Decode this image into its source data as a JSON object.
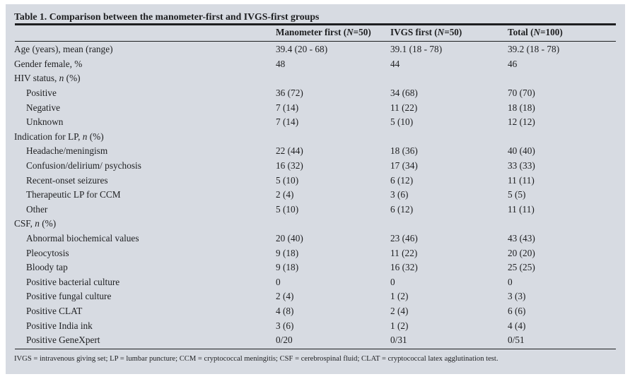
{
  "table": {
    "title": "Table 1. Comparison between the manometer-first and IVGS-first groups",
    "columns": [
      {
        "label": ""
      },
      {
        "label": "Manometer first (*N*=50)"
      },
      {
        "label": "IVGS first (*N*=50)"
      },
      {
        "label": "Total (*N*=100)"
      }
    ],
    "rows": [
      {
        "label": "Age (years), mean (range)",
        "indent": 0,
        "values": [
          "39.4 (20 - 68)",
          "39.1 (18 - 78)",
          "39.2 (18 - 78)"
        ]
      },
      {
        "label": "Gender female, %",
        "indent": 0,
        "values": [
          "48",
          "44",
          "46"
        ]
      },
      {
        "label": "HIV status, *n* (%)",
        "indent": 0,
        "values": [
          "",
          "",
          ""
        ]
      },
      {
        "label": "Positive",
        "indent": 1,
        "values": [
          "36 (72)",
          "34 (68)",
          "70 (70)"
        ]
      },
      {
        "label": "Negative",
        "indent": 1,
        "values": [
          "7 (14)",
          "11 (22)",
          "18 (18)"
        ]
      },
      {
        "label": "Unknown",
        "indent": 1,
        "values": [
          "7 (14)",
          "5 (10)",
          "12 (12)"
        ]
      },
      {
        "label": "Indication for LP, *n* (%)",
        "indent": 0,
        "values": [
          "",
          "",
          ""
        ]
      },
      {
        "label": "Headache/meningism",
        "indent": 1,
        "values": [
          "22 (44)",
          "18 (36)",
          "40 (40)"
        ]
      },
      {
        "label": "Confusion/delirium/ psychosis",
        "indent": 1,
        "values": [
          "16 (32)",
          "17 (34)",
          "33 (33)"
        ]
      },
      {
        "label": "Recent-onset seizures",
        "indent": 1,
        "values": [
          "5 (10)",
          "6 (12)",
          "11 (11)"
        ]
      },
      {
        "label": "Therapeutic LP for CCM",
        "indent": 1,
        "values": [
          "2 (4)",
          "3 (6)",
          "5 (5)"
        ]
      },
      {
        "label": "Other",
        "indent": 1,
        "values": [
          "5 (10)",
          "6 (12)",
          "11 (11)"
        ]
      },
      {
        "label": "CSF, *n* (%)",
        "indent": 0,
        "values": [
          "",
          "",
          ""
        ]
      },
      {
        "label": "Abnormal biochemical values",
        "indent": 1,
        "values": [
          "20 (40)",
          "23 (46)",
          "43 (43)"
        ]
      },
      {
        "label": "Pleocytosis",
        "indent": 1,
        "values": [
          "9 (18)",
          "11 (22)",
          "20 (20)"
        ]
      },
      {
        "label": "Bloody tap",
        "indent": 1,
        "values": [
          "9 (18)",
          "16 (32)",
          "25 (25)"
        ]
      },
      {
        "label": "Positive bacterial culture",
        "indent": 1,
        "values": [
          "0",
          "0",
          "0"
        ]
      },
      {
        "label": "Positive fungal culture",
        "indent": 1,
        "values": [
          "2 (4)",
          "1 (2)",
          "3 (3)"
        ]
      },
      {
        "label": "Positive CLAT",
        "indent": 1,
        "values": [
          "4 (8)",
          "2 (4)",
          "6 (6)"
        ]
      },
      {
        "label": "Positive India ink",
        "indent": 1,
        "values": [
          "3 (6)",
          "1 (2)",
          "4 (4)"
        ]
      },
      {
        "label": "Positive GeneXpert",
        "indent": 1,
        "values": [
          "0/20",
          "0/31",
          "0/51"
        ]
      }
    ],
    "footnote": "IVGS = intravenous giving set; LP = lumbar puncture; CCM = cryptococcal meningitis; CSF = cerebrospinal fluid; CLAT = cryptococcal latex agglutination test."
  },
  "colors": {
    "page_background": "#ffffff",
    "card_background": "#d7dbe2",
    "rule": "#1d1e20",
    "text": "#1e1f21"
  }
}
